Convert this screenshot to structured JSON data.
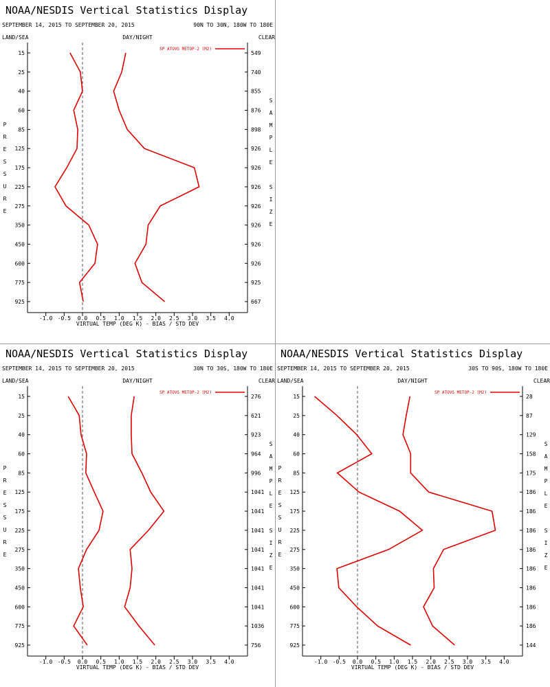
{
  "chart_data": [
    {
      "type": "line",
      "title": "NOAA/NESDIS Vertical Statistics Display",
      "subtitle": "SEPTEMBER 14, 2015 TO SEPTEMBER 20, 2015",
      "region": "90N TO 30N, 180W TO 180E",
      "left_header": "LAND/SEA",
      "center_header": "DAY/NIGHT",
      "right_header": "CLEAR",
      "y_label": "PRESSURE",
      "y2_label": "SAMPLE SIZE",
      "x_label": "VIRTUAL TEMP (DEG K) - BIAS / STD DEV",
      "legend": "SP ATOVS METOP-2 (M2)",
      "categories": [
        15,
        25,
        40,
        60,
        85,
        125,
        175,
        225,
        275,
        350,
        450,
        600,
        775,
        925
      ],
      "sample_size": [
        549,
        740,
        855,
        876,
        898,
        926,
        926,
        926,
        926,
        926,
        926,
        926,
        925,
        667
      ],
      "series": [
        {
          "color": "#dd0000",
          "values": [
            -0.34,
            -0.06,
            0.0,
            -0.24,
            -0.13,
            -0.15,
            -0.43,
            -0.75,
            -0.45,
            0.17,
            0.41,
            0.34,
            -0.08,
            0.02
          ]
        },
        {
          "color": "#dd0000",
          "values": [
            1.18,
            1.07,
            0.85,
            1.0,
            1.22,
            1.69,
            3.05,
            3.18,
            2.12,
            1.79,
            1.73,
            1.43,
            1.62,
            2.24
          ]
        }
      ],
      "xlim": [
        -1.5,
        4.5
      ],
      "xticks": [
        {
          "value": -1,
          "label": "-1.0"
        },
        -0.5,
        {
          "value": 0,
          "label": "0.0"
        },
        0.5,
        {
          "value": 1,
          "label": "1.0"
        },
        1.5,
        {
          "value": 2,
          "label": "2.0"
        },
        2.5,
        {
          "value": 3,
          "label": "3.0"
        },
        3.5,
        {
          "value": 4,
          "label": "4.0"
        }
      ],
      "zero_line": true
    },
    {
      "type": "line",
      "title": "NOAA/NESDIS Vertical Statistics Display",
      "subtitle": "SEPTEMBER 14, 2015 TO SEPTEMBER 20, 2015",
      "region": "30N TO 30S, 180W TO 180E",
      "left_header": "LAND/SEA",
      "center_header": "DAY/NIGHT",
      "right_header": "CLEAR",
      "y_label": "PRESSURE",
      "y2_label": "SAMPLE SIZE",
      "x_label": "VIRTUAL TEMP (DEG K) - BIAS / STD DEV",
      "legend": "SP ATOVS METOP-2 (M2)",
      "categories": [
        15,
        25,
        40,
        60,
        85,
        125,
        175,
        225,
        275,
        350,
        450,
        600,
        775,
        925
      ],
      "sample_size": [
        276,
        621,
        923,
        964,
        996,
        1041,
        1041,
        1041,
        1041,
        1041,
        1041,
        1041,
        1036,
        756
      ],
      "series": [
        {
          "color": "#dd0000",
          "values": [
            -0.39,
            -0.09,
            -0.04,
            0.11,
            0.09,
            0.32,
            0.56,
            0.45,
            0.11,
            -0.11,
            -0.06,
            0.02,
            -0.24,
            0.13
          ]
        },
        {
          "color": "#dd0000",
          "values": [
            1.41,
            1.33,
            1.33,
            1.35,
            1.62,
            1.86,
            2.22,
            1.8,
            1.3,
            1.35,
            1.3,
            1.15,
            1.54,
            1.97
          ]
        }
      ],
      "xlim": [
        -1.5,
        4.5
      ],
      "xticks": [
        {
          "value": -1,
          "label": "-1.0"
        },
        -0.5,
        {
          "value": 0,
          "label": "0.0"
        },
        0.5,
        {
          "value": 1,
          "label": "1.0"
        },
        1.5,
        {
          "value": 2,
          "label": "2.0"
        },
        2.5,
        {
          "value": 3,
          "label": "3.0"
        },
        3.5,
        {
          "value": 4,
          "label": "4.0"
        }
      ],
      "zero_line": true
    },
    {
      "type": "line",
      "title": "NOAA/NESDIS Vertical Statistics Display",
      "subtitle": "SEPTEMBER 14, 2015 TO SEPTEMBER 20, 2015",
      "region": "30S TO 90S, 180W TO 180E",
      "left_header": "LAND/SEA",
      "center_header": "DAY/NIGHT",
      "right_header": "CLEAR",
      "y_label": "PRESSURE",
      "y2_label": "SAMPLE SIZE",
      "x_label": "VIRTUAL TEMP (DEG K) - BIAS / STD DEV",
      "legend": "SP ATOVS METOP-2 (M2)",
      "categories": [
        15,
        25,
        40,
        60,
        85,
        125,
        175,
        225,
        275,
        350,
        450,
        600,
        775,
        925
      ],
      "sample_size": [
        28,
        87,
        129,
        158,
        175,
        186,
        186,
        186,
        186,
        186,
        186,
        186,
        186,
        144
      ],
      "series": [
        {
          "color": "#dd0000",
          "values": [
            -1.17,
            -0.56,
            -0.02,
            0.39,
            -0.55,
            0.04,
            1.15,
            1.77,
            0.85,
            -0.56,
            -0.51,
            -0.02,
            0.55,
            1.45
          ]
        },
        {
          "color": "#dd0000",
          "values": [
            1.43,
            1.33,
            1.24,
            1.45,
            1.45,
            1.94,
            3.67,
            3.76,
            2.35,
            2.07,
            2.09,
            1.8,
            2.05,
            2.65
          ]
        }
      ],
      "xlim": [
        -1.5,
        4.5
      ],
      "xticks": [
        {
          "value": -1,
          "label": "-1.0"
        },
        -0.5,
        {
          "value": 0,
          "label": "0.0"
        },
        0.5,
        {
          "value": 1,
          "label": "1.0"
        },
        1.5,
        {
          "value": 2,
          "label": "2.0"
        },
        2.5,
        {
          "value": 3,
          "label": "3.0"
        },
        3.5,
        {
          "value": 4,
          "label": "4.0"
        }
      ],
      "zero_line": true
    }
  ]
}
